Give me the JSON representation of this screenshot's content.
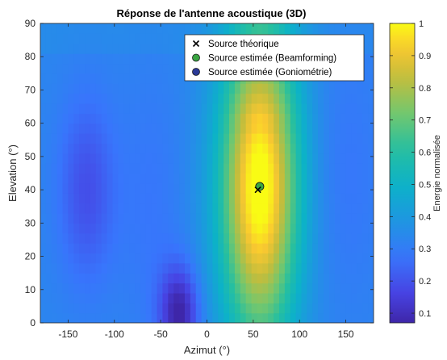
{
  "chart_data": {
    "type": "heatmap",
    "title": "Réponse de l'antenne acoustique (3D)",
    "xlabel": "Azimut (°)",
    "ylabel": "Elevation (°)",
    "xlim": [
      -180,
      180
    ],
    "ylim": [
      0,
      90
    ],
    "xticks": [
      -150,
      -100,
      -50,
      0,
      50,
      100,
      150
    ],
    "yticks": [
      0,
      10,
      20,
      30,
      40,
      50,
      60,
      70,
      80,
      90
    ],
    "colormap": "parula",
    "colorbar": {
      "label": "Energie normalisée",
      "range": [
        0.07,
        1.0
      ],
      "ticks": [
        0.1,
        0.2,
        0.3,
        0.4,
        0.5,
        0.6,
        0.7,
        0.8,
        0.9,
        1
      ]
    },
    "peak": {
      "azimuth": 57,
      "elevation": 41,
      "value": 1.0
    },
    "minima": [
      {
        "azimuth": -130,
        "elevation": 40,
        "value": 0.2
      },
      {
        "azimuth": -30,
        "elevation": 3,
        "value": 0.07
      }
    ],
    "markers": [
      {
        "label": "Source théorique",
        "symbol": "x",
        "color": "#000000",
        "azimuth": 55,
        "elevation": 40
      },
      {
        "label": "Source estimée (Beamforming)",
        "symbol": "circle",
        "color": "#3aa542",
        "azimuth": 57,
        "elevation": 41
      },
      {
        "label": "Source estimée (Goniométrie)",
        "symbol": "circle",
        "color": "#2b3a97",
        "azimuth": 57,
        "elevation": 41
      }
    ],
    "legend_position": "top-right",
    "grid": false
  }
}
